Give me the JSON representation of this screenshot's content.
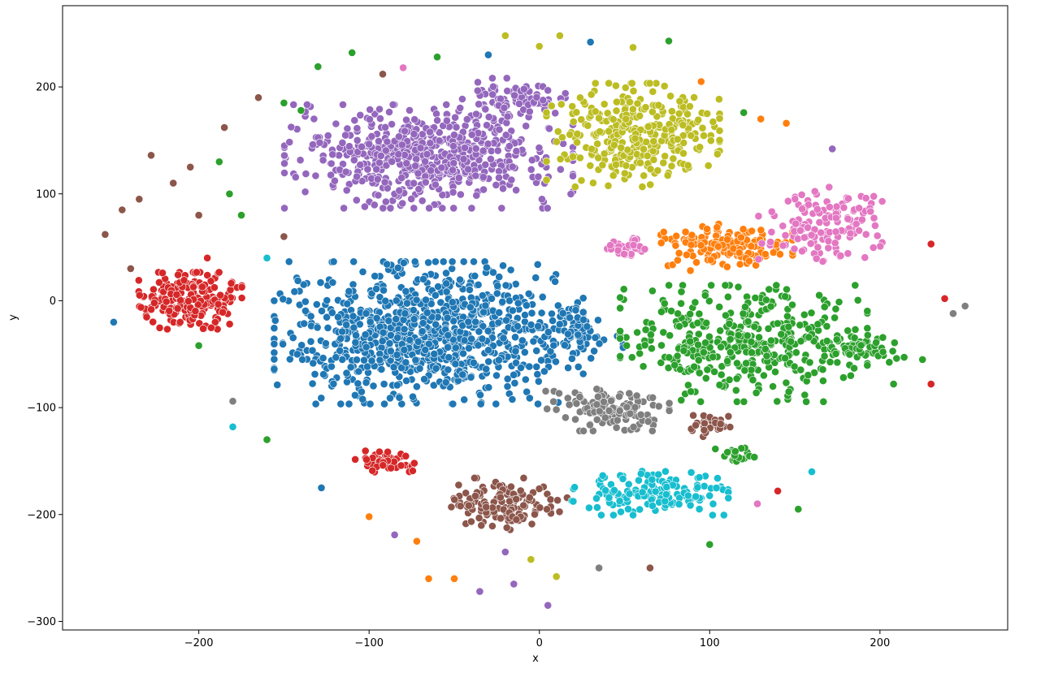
{
  "chart_data": {
    "type": "scatter",
    "title": "",
    "xlabel": "x",
    "ylabel": "y",
    "xlim": [
      -280,
      275
    ],
    "ylim": [
      -308,
      276
    ],
    "xticks": [
      -200,
      -100,
      0,
      100,
      200
    ],
    "xtick_labels": [
      "−200",
      "−100",
      "0",
      "100",
      "200"
    ],
    "yticks": [
      200,
      100,
      0,
      -100,
      -200,
      -300
    ],
    "ytick_labels": [
      "200",
      "100",
      "0",
      "−100",
      "−200",
      "−300"
    ],
    "grid": false,
    "legend": "none",
    "point_colors": [
      "#1f77b4",
      "#ff7f0e",
      "#2ca02c",
      "#d62728",
      "#9467bd",
      "#8c564b",
      "#e377c2",
      "#7f7f7f",
      "#bcbd22",
      "#17becf"
    ],
    "clusters": [
      {
        "color_index": 4,
        "center": [
          -65,
          135
        ],
        "spread": [
          70,
          40
        ],
        "count": 620
      },
      {
        "color_index": 4,
        "center": [
          -15,
          190
        ],
        "spread": [
          25,
          15
        ],
        "count": 80
      },
      {
        "color_index": 0,
        "center": [
          -65,
          -30
        ],
        "spread": [
          75,
          55
        ],
        "count": 900
      },
      {
        "color_index": 0,
        "center": [
          25,
          -30
        ],
        "spread": [
          20,
          20
        ],
        "count": 60
      },
      {
        "color_index": 3,
        "center": [
          -205,
          0
        ],
        "spread": [
          25,
          22
        ],
        "count": 200
      },
      {
        "color_index": 3,
        "center": [
          -90,
          -150
        ],
        "spread": [
          15,
          9
        ],
        "count": 50
      },
      {
        "color_index": 8,
        "center": [
          55,
          155
        ],
        "spread": [
          42,
          40
        ],
        "count": 330
      },
      {
        "color_index": 1,
        "center": [
          110,
          50
        ],
        "spread": [
          32,
          18
        ],
        "count": 170
      },
      {
        "color_index": 6,
        "center": [
          165,
          70
        ],
        "spread": [
          30,
          30
        ],
        "count": 140
      },
      {
        "color_index": 6,
        "center": [
          50,
          50
        ],
        "spread": [
          12,
          10
        ],
        "count": 40
      },
      {
        "color_index": 2,
        "center": [
          120,
          -40
        ],
        "spread": [
          60,
          45
        ],
        "count": 400
      },
      {
        "color_index": 2,
        "center": [
          190,
          -45
        ],
        "spread": [
          20,
          15
        ],
        "count": 50
      },
      {
        "color_index": 7,
        "center": [
          40,
          -100
        ],
        "spread": [
          30,
          18
        ],
        "count": 120
      },
      {
        "color_index": 5,
        "center": [
          -20,
          -190
        ],
        "spread": [
          30,
          20
        ],
        "count": 140
      },
      {
        "color_index": 5,
        "center": [
          100,
          -115
        ],
        "spread": [
          14,
          10
        ],
        "count": 30
      },
      {
        "color_index": 9,
        "center": [
          65,
          -180
        ],
        "spread": [
          38,
          17
        ],
        "count": 150
      },
      {
        "color_index": 2,
        "center": [
          115,
          -145
        ],
        "spread": [
          10,
          6
        ],
        "count": 25
      }
    ],
    "scattered_points": [
      [
        -250,
        -20,
        0
      ],
      [
        -240,
        30,
        5
      ],
      [
        -255,
        62,
        5
      ],
      [
        -235,
        95,
        5
      ],
      [
        -228,
        136,
        5
      ],
      [
        -215,
        110,
        5
      ],
      [
        -185,
        162,
        5
      ],
      [
        -165,
        190,
        5
      ],
      [
        -130,
        219,
        2
      ],
      [
        -110,
        232,
        2
      ],
      [
        -80,
        218,
        6
      ],
      [
        -60,
        228,
        2
      ],
      [
        -30,
        230,
        0
      ],
      [
        -20,
        248,
        8
      ],
      [
        0,
        238,
        8
      ],
      [
        12,
        248,
        8
      ],
      [
        30,
        242,
        0
      ],
      [
        55,
        237,
        8
      ],
      [
        76,
        243,
        2
      ],
      [
        95,
        205,
        1
      ],
      [
        120,
        176,
        2
      ],
      [
        130,
        170,
        1
      ],
      [
        145,
        166,
        1
      ],
      [
        172,
        142,
        4
      ],
      [
        230,
        53,
        3
      ],
      [
        238,
        2,
        3
      ],
      [
        250,
        -5,
        7
      ],
      [
        243,
        -12,
        7
      ],
      [
        230,
        -78,
        3
      ],
      [
        225,
        -55,
        2
      ],
      [
        208,
        -78,
        2
      ],
      [
        160,
        -160,
        9
      ],
      [
        152,
        -195,
        2
      ],
      [
        140,
        -178,
        3
      ],
      [
        128,
        -190,
        6
      ],
      [
        100,
        -228,
        2
      ],
      [
        65,
        -250,
        5
      ],
      [
        35,
        -250,
        7
      ],
      [
        10,
        -258,
        8
      ],
      [
        -5,
        -242,
        8
      ],
      [
        -20,
        -235,
        4
      ],
      [
        -15,
        -265,
        4
      ],
      [
        -35,
        -272,
        4
      ],
      [
        -50,
        -260,
        1
      ],
      [
        -65,
        -260,
        1
      ],
      [
        -100,
        -202,
        1
      ],
      [
        -72,
        -225,
        1
      ],
      [
        -85,
        -219,
        4
      ],
      [
        -128,
        -175,
        0
      ],
      [
        -180,
        -118,
        9
      ],
      [
        -160,
        -130,
        2
      ],
      [
        -200,
        -42,
        2
      ],
      [
        -182,
        100,
        2
      ],
      [
        -175,
        80,
        2
      ],
      [
        -188,
        130,
        2
      ],
      [
        -150,
        185,
        2
      ],
      [
        -160,
        40,
        9
      ],
      [
        5,
        -285,
        4
      ],
      [
        -180,
        -94,
        7
      ],
      [
        -205,
        125,
        5
      ],
      [
        -195,
        40,
        3
      ],
      [
        -150,
        60,
        5
      ],
      [
        -245,
        85,
        5
      ],
      [
        -200,
        80,
        5
      ],
      [
        -140,
        178,
        2
      ],
      [
        -92,
        212,
        5
      ]
    ]
  }
}
